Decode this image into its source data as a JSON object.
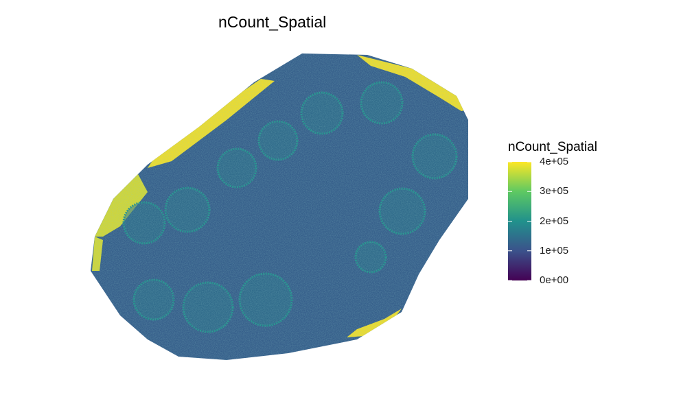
{
  "chart_data": {
    "type": "heatmap",
    "subtype": "spatial-feature-plot",
    "title": "nCount_Spatial",
    "xlabel": "",
    "ylabel": "",
    "grid": false,
    "colorbar": {
      "title": "nCount_Spatial",
      "palette": "viridis",
      "range": [
        0,
        400000
      ],
      "ticks": [
        {
          "value": 400000,
          "label": "4e+05"
        },
        {
          "value": 300000,
          "label": "3e+05"
        },
        {
          "value": 200000,
          "label": "2e+05"
        },
        {
          "value": 100000,
          "label": "1e+05"
        },
        {
          "value": 0,
          "label": "0e+00"
        }
      ],
      "colors": [
        "#440154",
        "#3b528b",
        "#21918c",
        "#5ec962",
        "#fde725"
      ]
    },
    "legend_position": "right",
    "tissue_background_value": 120000,
    "tissue_color": "#2f5f8a",
    "regions": [
      {
        "name": "high-count tissue edge, upper left",
        "value": 400000
      },
      {
        "name": "high-count tissue edge, upper right",
        "value": 400000
      },
      {
        "name": "high-count tissue edge, lower right",
        "value": 400000
      },
      {
        "name": "high-count tissue edge, left",
        "value": 380000
      },
      {
        "name": "circular structures",
        "value": 200000
      }
    ]
  }
}
